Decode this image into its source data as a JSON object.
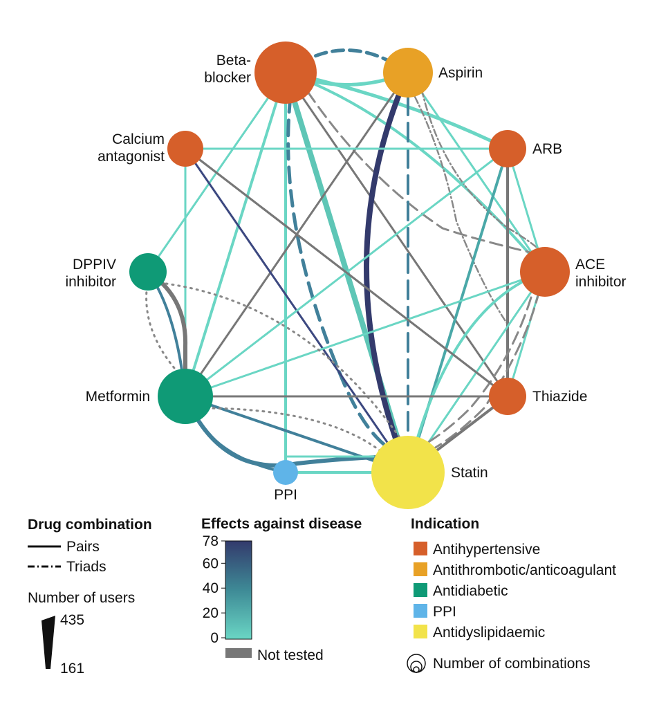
{
  "nodes": [
    {
      "id": "beta",
      "label_lines": [
        "Beta-",
        "blocker"
      ],
      "category": "antihypertensive"
    },
    {
      "id": "aspirin",
      "label_lines": [
        "Aspirin"
      ],
      "category": "antithrombotic"
    },
    {
      "id": "arb",
      "label_lines": [
        "ARB"
      ],
      "category": "antihypertensive"
    },
    {
      "id": "ace",
      "label_lines": [
        "ACE",
        "inhibitor"
      ],
      "category": "antihypertensive"
    },
    {
      "id": "thiazide",
      "label_lines": [
        "Thiazide"
      ],
      "category": "antihypertensive"
    },
    {
      "id": "statin",
      "label_lines": [
        "Statin"
      ],
      "category": "antidyslipidaemic"
    },
    {
      "id": "ppi",
      "label_lines": [
        "PPI"
      ],
      "category": "ppi"
    },
    {
      "id": "metformin",
      "label_lines": [
        "Metformin"
      ],
      "category": "antidiabetic"
    },
    {
      "id": "dppiv",
      "label_lines": [
        "DPPIV",
        "inhibitor"
      ],
      "category": "antidiabetic"
    },
    {
      "id": "calcium",
      "label_lines": [
        "Calcium",
        "antagonist"
      ],
      "category": "antihypertensive"
    }
  ],
  "legend": {
    "combination": {
      "title": "Drug combination",
      "pairs": "Pairs",
      "triads": "Triads"
    },
    "users": {
      "title": "Number of users",
      "max": "435",
      "min": "161"
    },
    "effects": {
      "title": "Effects against disease",
      "ticks": [
        "78",
        "60",
        "40",
        "20",
        "0"
      ],
      "not_tested": "Not tested"
    },
    "indication": {
      "title": "Indication",
      "items": [
        {
          "key": "antihypertensive",
          "label": "Antihypertensive"
        },
        {
          "key": "antithrombotic",
          "label": "Antithrombotic/anticoagulant"
        },
        {
          "key": "antidiabetic",
          "label": "Antidiabetic"
        },
        {
          "key": "ppi",
          "label": "PPI"
        },
        {
          "key": "antidyslipidaemic",
          "label": "Antidyslipidaemic"
        }
      ],
      "size_label": "Number of combinations"
    }
  },
  "colors": {
    "antihypertensive": "#d65f2a",
    "antithrombotic": "#e8a126",
    "antidiabetic": "#0f9a76",
    "ppi": "#5fb4e8",
    "antidyslipidaemic": "#f2e34a",
    "not_tested": "#777777",
    "effect_high": "#333a6c",
    "effect_low": "#6ad6c4"
  }
}
